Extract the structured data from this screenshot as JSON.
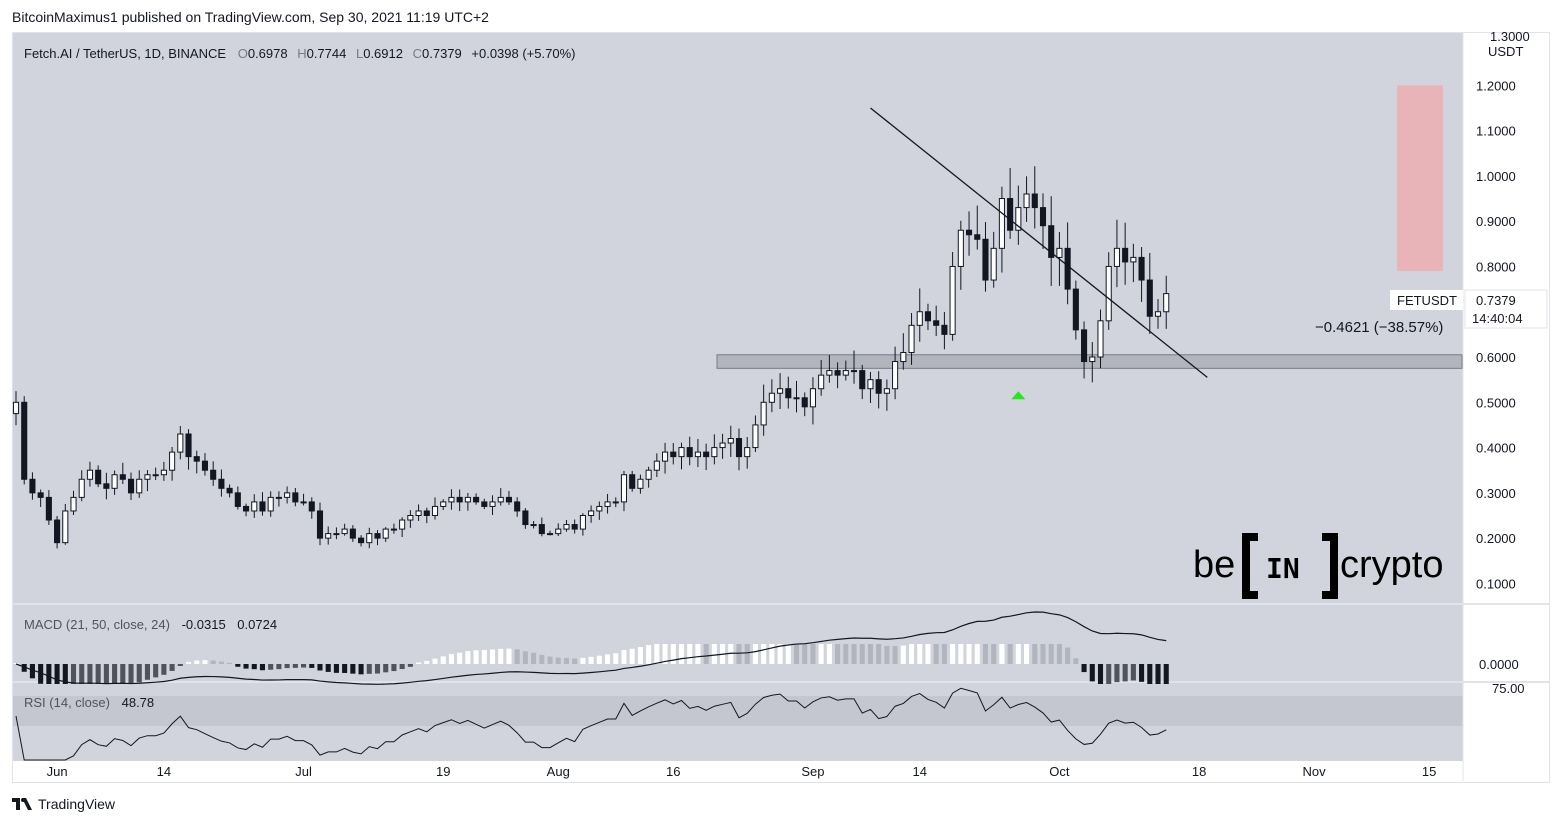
{
  "header": {
    "published_line": "BitcoinMaximus1 published on TradingView.com, Sep 30, 2021 11:19 UTC+2"
  },
  "legend": {
    "symbol": "Fetch.AI / TetherUS, 1D, BINANCE",
    "o_label": "O",
    "o_value": "0.6978",
    "h_label": "H",
    "h_value": "0.7744",
    "l_label": "L",
    "l_value": "0.6912",
    "c_label": "C",
    "c_value": "0.7379",
    "change": "+0.0398 (+5.70%)"
  },
  "macd": {
    "label": "MACD (21, 50, close, 24)",
    "v1": "-0.0315",
    "v2": "0.0724"
  },
  "rsi": {
    "label": "RSI (14, close)",
    "value": "48.78"
  },
  "price_tag": {
    "symbol": "FETUSDT",
    "price": "0.7379",
    "countdown": "14:40:04"
  },
  "measure_label": "−0.4621 (−38.57%)",
  "macd_axis_label": "0.0000",
  "rsi_axis_label": "75.00",
  "partial_top_label": "1.3000",
  "currency_label": "USDT",
  "logo": {
    "left": "be",
    "middle": "IN",
    "right": "crypto"
  },
  "footer": {
    "brand": "TradingView"
  },
  "colors": {
    "background": "#d1d4dc",
    "bull_body": "#ffffff",
    "bear_body": "#131722",
    "support_zone": "#b2b5be",
    "target_box": "#e8b4b8",
    "arrow": "#26e61c"
  },
  "chart_data": {
    "type": "candlestick",
    "title": "Fetch.AI / TetherUS, 1D, BINANCE",
    "y_axis": {
      "ticks": [
        0.1,
        0.2,
        0.3,
        0.4,
        0.5,
        0.6,
        0.7,
        0.8,
        0.9,
        1.0,
        1.1,
        1.2
      ],
      "tick_labels": [
        "0.1000",
        "0.2000",
        "0.3000",
        "0.4000",
        "0.5000",
        "0.6000",
        "0.7000",
        "0.8000",
        "0.9000",
        "1.0000",
        "1.1000",
        "1.2000"
      ],
      "range": [
        0.07,
        1.32
      ]
    },
    "x_axis": {
      "tick_labels": [
        "Jun",
        "14",
        "Jul",
        "19",
        "Aug",
        "16",
        "Sep",
        "14",
        "Oct",
        "18",
        "Nov",
        "15"
      ],
      "tick_days": [
        5,
        18,
        35,
        52,
        66,
        80,
        97,
        110,
        127,
        144,
        158,
        172
      ],
      "day_range": [
        0,
        176
      ]
    },
    "closes": [
      0.5,
      0.33,
      0.3,
      0.29,
      0.24,
      0.19,
      0.26,
      0.29,
      0.33,
      0.35,
      0.32,
      0.31,
      0.34,
      0.33,
      0.3,
      0.33,
      0.34,
      0.34,
      0.35,
      0.39,
      0.43,
      0.38,
      0.37,
      0.35,
      0.33,
      0.31,
      0.3,
      0.27,
      0.26,
      0.28,
      0.26,
      0.29,
      0.29,
      0.3,
      0.28,
      0.28,
      0.26,
      0.2,
      0.21,
      0.21,
      0.22,
      0.2,
      0.19,
      0.21,
      0.2,
      0.22,
      0.22,
      0.24,
      0.25,
      0.26,
      0.25,
      0.27,
      0.28,
      0.29,
      0.28,
      0.29,
      0.28,
      0.27,
      0.28,
      0.29,
      0.28,
      0.26,
      0.23,
      0.23,
      0.21,
      0.21,
      0.22,
      0.23,
      0.22,
      0.25,
      0.26,
      0.27,
      0.28,
      0.28,
      0.34,
      0.31,
      0.33,
      0.35,
      0.37,
      0.39,
      0.38,
      0.4,
      0.38,
      0.39,
      0.38,
      0.4,
      0.41,
      0.42,
      0.38,
      0.4,
      0.45,
      0.5,
      0.52,
      0.53,
      0.51,
      0.51,
      0.49,
      0.53,
      0.56,
      0.57,
      0.56,
      0.57,
      0.57,
      0.53,
      0.55,
      0.52,
      0.53,
      0.59,
      0.61,
      0.67,
      0.7,
      0.68,
      0.67,
      0.65,
      0.8,
      0.88,
      0.87,
      0.86,
      0.77,
      0.84,
      0.95,
      0.88,
      0.93,
      0.96,
      0.93,
      0.89,
      0.82,
      0.84,
      0.75,
      0.66,
      0.59,
      0.6,
      0.68,
      0.8,
      0.84,
      0.81,
      0.82,
      0.77,
      0.69,
      0.7,
      0.74
    ],
    "support_zone": [
      0.575,
      0.605
    ],
    "trendline": [
      [
        104,
        1.15
      ],
      [
        145,
        0.555
      ]
    ],
    "target_box": [
      1.2,
      0.79
    ],
    "measure": {
      "change": -0.4621,
      "change_pct": -38.57
    },
    "last_price": 0.7379,
    "macd": {
      "macd": -0.0315,
      "signal": 0.0724
    },
    "rsi": {
      "value": 48.78,
      "level": 75.0
    }
  }
}
